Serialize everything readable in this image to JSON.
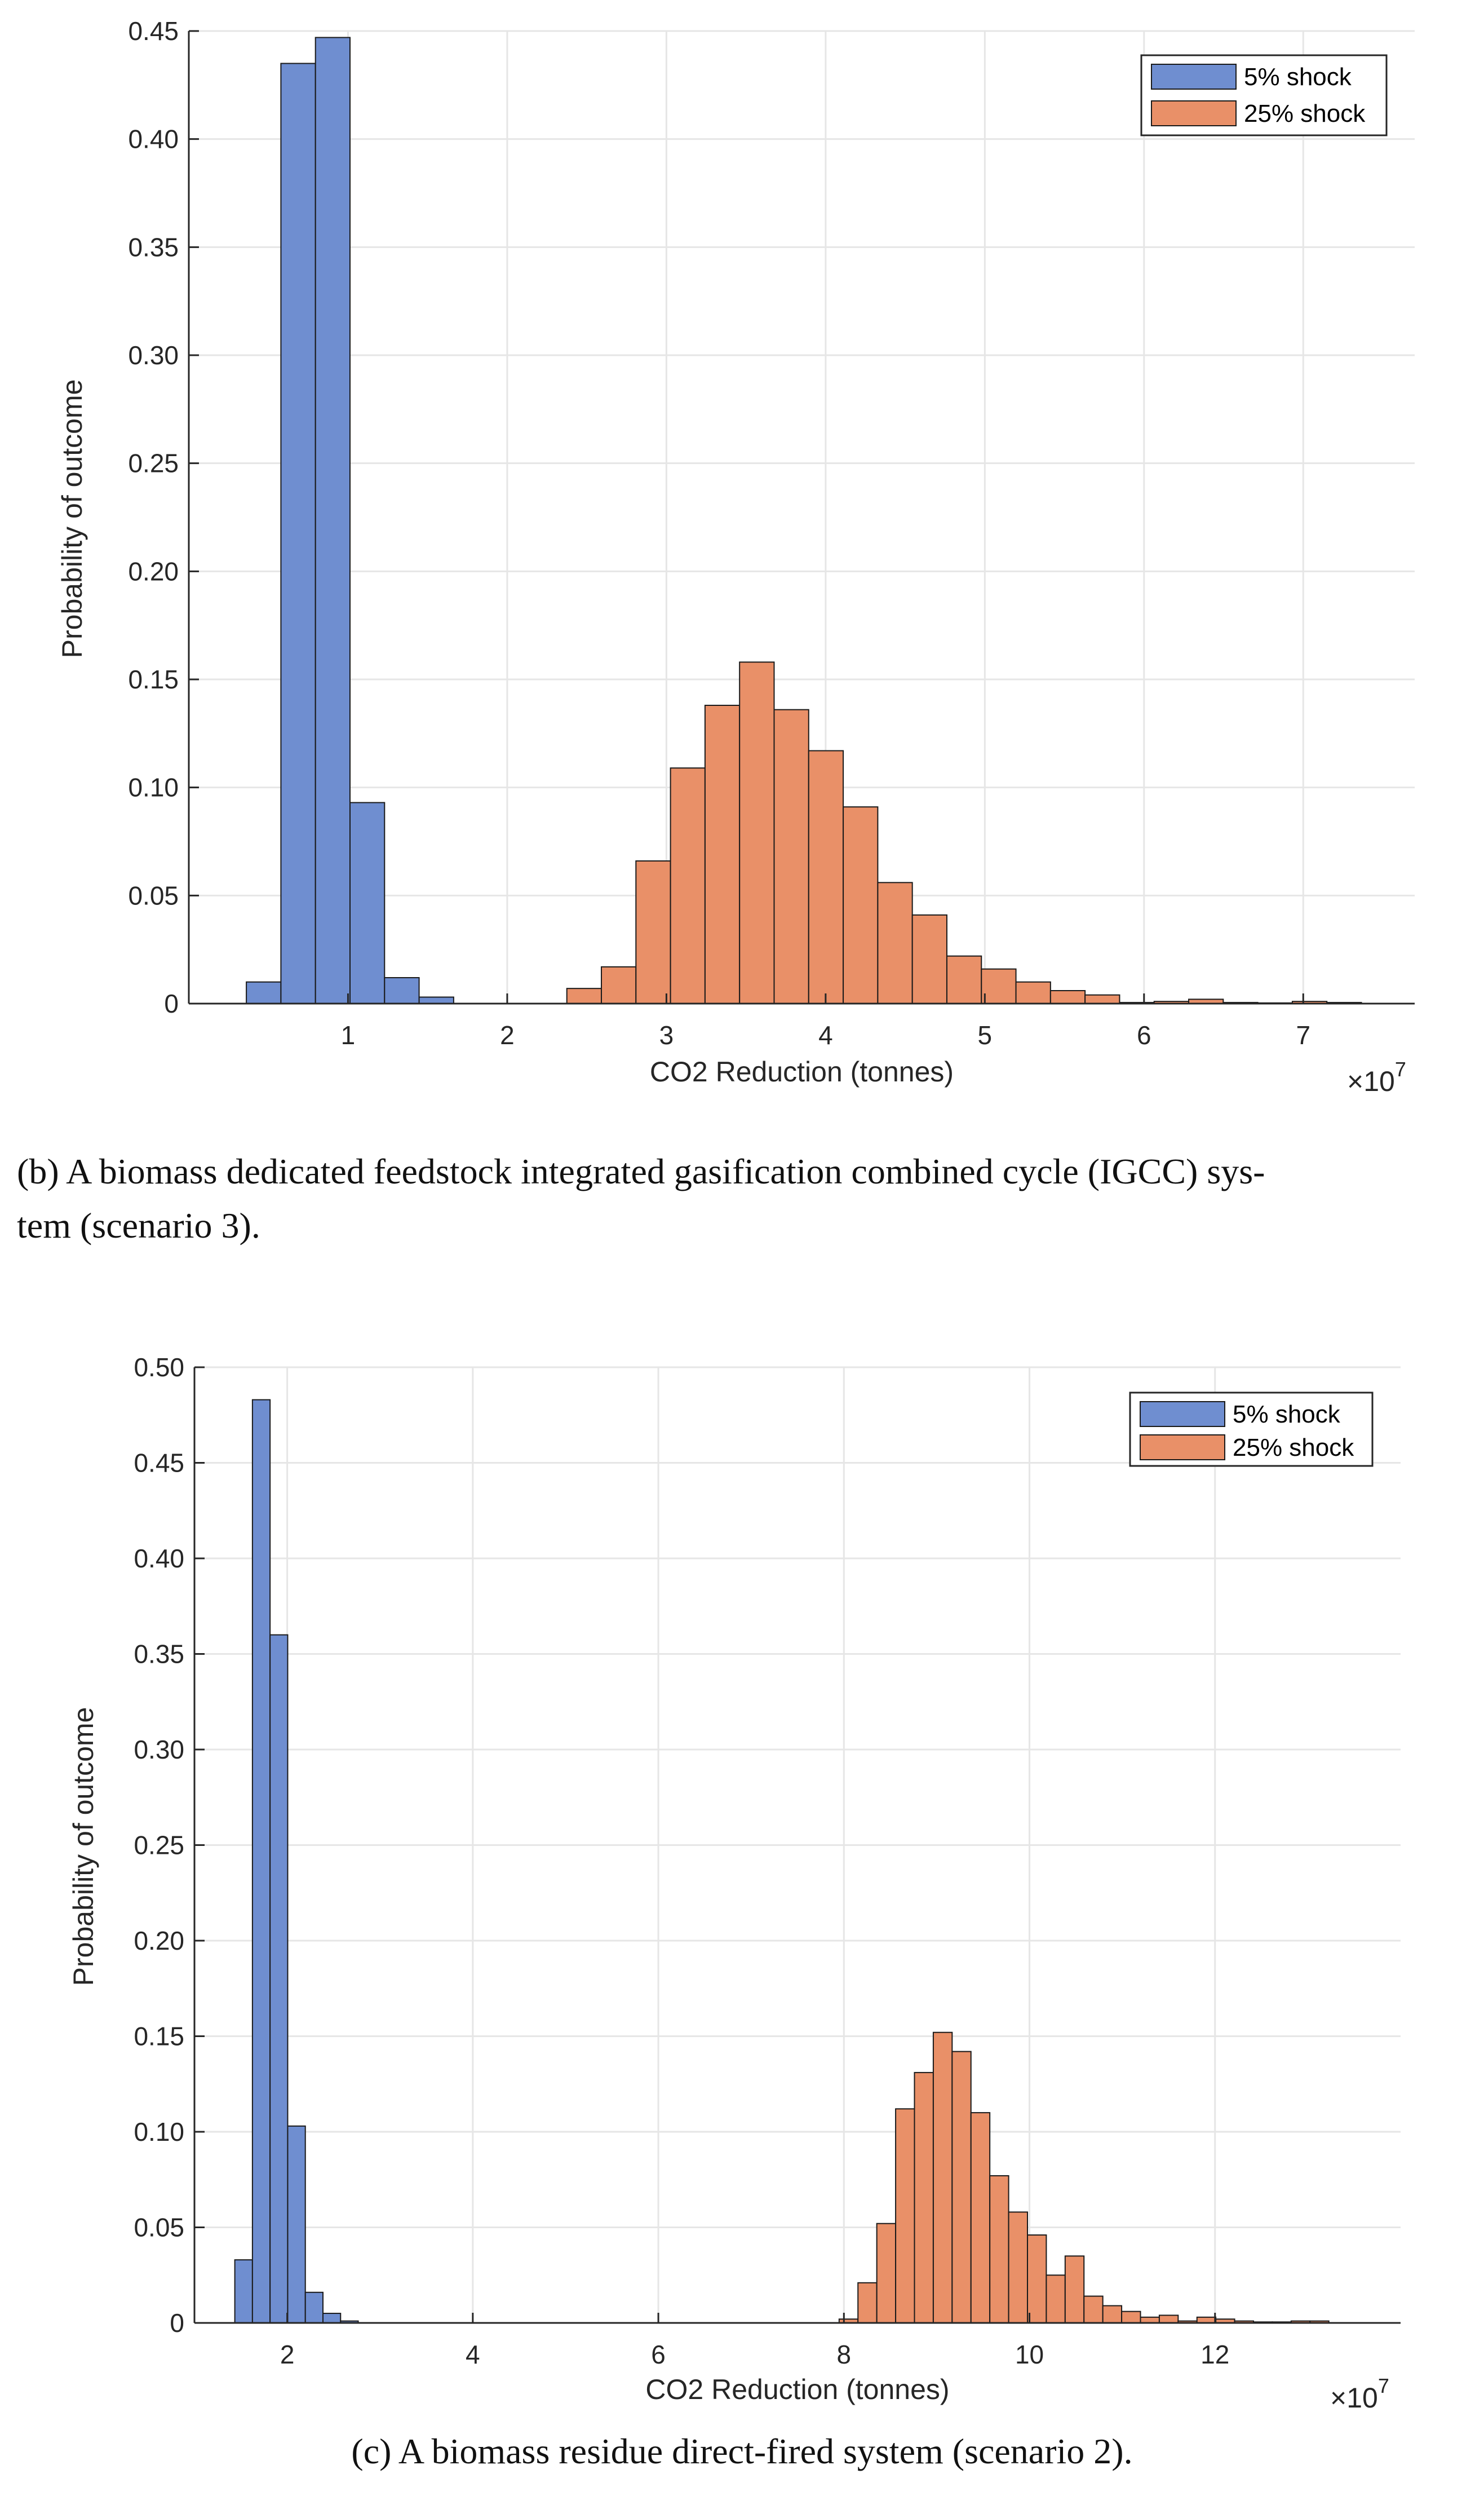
{
  "chart_data": [
    {
      "type": "bar",
      "xlabel": "CO2 Reduction (tonnes)",
      "ylabel": "Probability of outcome",
      "x_exponent_label": "×10",
      "x_exponent": "7",
      "xlim": [
        0,
        7.7
      ],
      "ylim": [
        0,
        0.45
      ],
      "xticks": [
        "1",
        "2",
        "3",
        "4",
        "5",
        "6",
        "7"
      ],
      "yticks": [
        "0",
        "0.05",
        "0.10",
        "0.15",
        "0.20",
        "0.25",
        "0.30",
        "0.35",
        "0.40",
        "0.45"
      ],
      "grid": true,
      "legend_position": "top-right",
      "series": [
        {
          "name": "5% shock",
          "color": "#6f8ed0",
          "bin_width": 0.217,
          "x": [
            0.47,
            0.687,
            0.904,
            1.121,
            1.338
          ],
          "values": [
            0.01,
            0.435,
            0.447,
            0.093,
            0.012
          ],
          "extra_bins": [
            {
              "x": 1.555,
              "value": 0.003
            }
          ]
        },
        {
          "name": "25% shock",
          "color": "#e99068",
          "bin_width": 0.217,
          "x": [
            2.483,
            2.7,
            2.917,
            3.134,
            3.351,
            3.568,
            3.785,
            4.002,
            4.219,
            4.436,
            4.653,
            4.87,
            5.087,
            5.304,
            5.521,
            5.738,
            5.955,
            6.172,
            6.389,
            6.606,
            6.823,
            7.04,
            7.257
          ],
          "values": [
            0.007,
            0.017,
            0.066,
            0.109,
            0.138,
            0.158,
            0.136,
            0.117,
            0.091,
            0.056,
            0.041,
            0.022,
            0.016,
            0.01,
            0.006,
            0.004,
            0.0005,
            0.001,
            0.002,
            0.0005,
            0.0003,
            0.001,
            0.0005
          ]
        }
      ]
    },
    {
      "type": "bar",
      "xlabel": "CO2 Reduction (tonnes)",
      "ylabel": "Probability of outcome",
      "x_exponent_label": "×10",
      "x_exponent": "7",
      "xlim": [
        1,
        14
      ],
      "ylim": [
        0,
        0.5
      ],
      "xticks": [
        "2",
        "4",
        "6",
        "8",
        "10",
        "12"
      ],
      "yticks": [
        "0",
        "0.05",
        "0.10",
        "0.15",
        "0.20",
        "0.25",
        "0.30",
        "0.35",
        "0.40",
        "0.45",
        "0.50"
      ],
      "grid": true,
      "legend_position": "top-right",
      "series": [
        {
          "name": "5% shock",
          "color": "#6f8ed0",
          "bin_width": 0.19,
          "x": [
            1.53,
            1.72,
            1.91,
            2.1,
            2.29,
            2.48,
            2.67
          ],
          "values": [
            0.033,
            0.483,
            0.36,
            0.103,
            0.016,
            0.005,
            0.001
          ]
        },
        {
          "name": "25% shock",
          "color": "#e99068",
          "bin_width": 0.203,
          "x": [
            8.05,
            8.253,
            8.456,
            8.659,
            8.862,
            9.065,
            9.268,
            9.471,
            9.674,
            9.877,
            10.08,
            10.283,
            10.486,
            10.689,
            10.892,
            11.095,
            11.298,
            11.501,
            11.704,
            11.907,
            12.11,
            12.313,
            12.516,
            12.719,
            12.922,
            13.125
          ],
          "values": [
            0.002,
            0.021,
            0.052,
            0.112,
            0.131,
            0.152,
            0.142,
            0.11,
            0.077,
            0.058,
            0.046,
            0.025,
            0.035,
            0.014,
            0.009,
            0.006,
            0.003,
            0.004,
            0.001,
            0.003,
            0.002,
            0.001,
            0.0005,
            0.0005,
            0.001,
            0.001
          ]
        }
      ]
    }
  ],
  "captions": {
    "b_line1": "(b) A biomass dedicated feedstock integrated gasification combined cycle (IGCC) sys-",
    "b_line2": "tem (scenario 3).",
    "c": "(c) A biomass residue direct-fired system (scenario 2)."
  }
}
